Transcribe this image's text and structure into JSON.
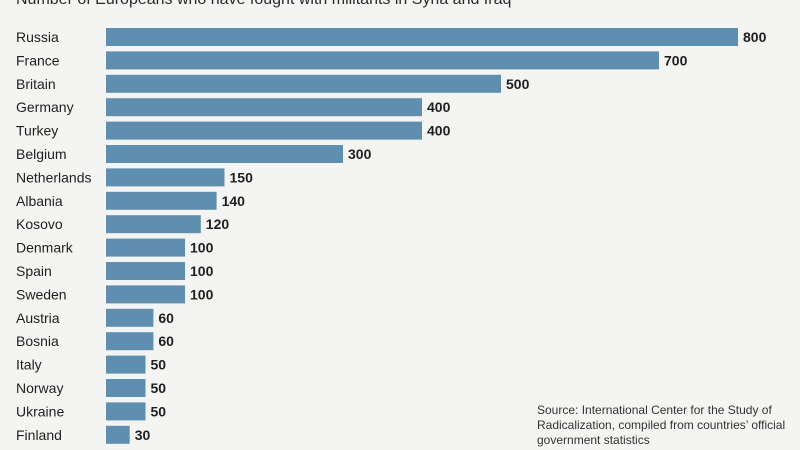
{
  "colors": {
    "bar": "#5e8fb0",
    "text": "#1f1f1f",
    "background": "#f4f4f2"
  },
  "chart_data": {
    "type": "bar",
    "orientation": "horizontal",
    "title": "Number of Europeans who have fought with militants in Syria and Iraq",
    "categories": [
      "Russia",
      "France",
      "Britain",
      "Germany",
      "Turkey",
      "Belgium",
      "Netherlands",
      "Albania",
      "Kosovo",
      "Denmark",
      "Spain",
      "Sweden",
      "Austria",
      "Bosnia",
      "Italy",
      "Norway",
      "Ukraine",
      "Finland"
    ],
    "values": [
      800,
      700,
      500,
      400,
      400,
      300,
      150,
      140,
      120,
      100,
      100,
      100,
      60,
      60,
      50,
      50,
      50,
      30
    ],
    "data_labels": [
      "800",
      "700",
      "500",
      "400",
      "400",
      "300",
      "150",
      "140",
      "120",
      "100",
      "100",
      "100",
      "60",
      "60",
      "50",
      "50",
      "50",
      "30"
    ],
    "xlim": [
      0,
      800
    ],
    "grid": false,
    "source": "Source: International Center for the Study of Radicalization, compiled from countries’ official government statistics"
  }
}
